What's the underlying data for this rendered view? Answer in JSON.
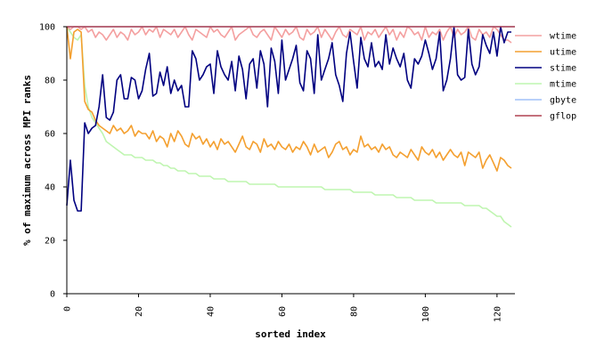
{
  "chart_data": {
    "type": "line",
    "xlabel": "sorted index",
    "ylabel": "% of maximum across MPI ranks",
    "xlim": [
      0,
      125
    ],
    "ylim": [
      0,
      100
    ],
    "x_ticks": [
      0,
      20,
      40,
      60,
      80,
      100,
      120
    ],
    "y_ticks": [
      0,
      20,
      40,
      60,
      80,
      100
    ],
    "grid": false,
    "legend_position": "right",
    "series": [
      {
        "name": "wtime",
        "color": "#f4a0a0",
        "values": [
          100,
          99,
          100,
          100,
          99,
          100,
          98,
          99,
          96,
          98,
          97,
          95,
          97,
          99,
          96,
          98,
          97,
          95,
          99,
          97,
          98,
          100,
          97,
          99,
          98,
          100,
          96,
          99,
          98,
          97,
          99,
          96,
          98,
          100,
          97,
          95,
          99,
          98,
          97,
          96,
          100,
          98,
          99,
          97,
          96,
          98,
          100,
          95,
          97,
          98,
          99,
          100,
          97,
          96,
          98,
          99,
          97,
          95,
          100,
          98,
          96,
          99,
          97,
          98,
          100,
          96,
          95,
          99,
          97,
          98,
          100,
          96,
          99,
          97,
          95,
          98,
          100,
          97,
          96,
          99,
          98,
          97,
          100,
          95,
          98,
          97,
          99,
          96,
          98,
          100,
          97,
          99,
          95,
          98,
          96,
          100,
          99,
          97,
          98,
          95,
          100,
          96,
          98,
          97,
          99,
          95,
          98,
          100,
          96,
          99,
          97,
          98,
          100,
          96,
          95,
          99,
          97,
          98,
          96,
          100,
          99,
          97,
          95,
          95,
          94
        ]
      },
      {
        "name": "utime",
        "color": "#f4a030",
        "values": [
          100,
          88,
          98,
          99,
          98,
          72,
          69,
          68,
          65,
          63,
          62,
          61,
          60,
          63,
          61,
          62,
          60,
          61,
          63,
          59,
          61,
          60,
          60,
          58,
          61,
          57,
          59,
          58,
          55,
          60,
          57,
          61,
          59,
          56,
          55,
          60,
          58,
          59,
          56,
          58,
          55,
          57,
          54,
          58,
          56,
          57,
          55,
          53,
          56,
          59,
          55,
          54,
          57,
          56,
          53,
          58,
          55,
          56,
          54,
          57,
          55,
          54,
          56,
          53,
          55,
          54,
          57,
          55,
          52,
          56,
          53,
          54,
          55,
          51,
          53,
          56,
          57,
          54,
          55,
          52,
          54,
          53,
          59,
          55,
          56,
          54,
          55,
          53,
          56,
          54,
          55,
          52,
          51,
          53,
          52,
          51,
          54,
          52,
          50,
          55,
          53,
          52,
          54,
          51,
          53,
          50,
          52,
          54,
          52,
          51,
          53,
          48,
          53,
          52,
          51,
          53,
          47,
          50,
          52,
          49,
          46,
          51,
          50,
          48,
          47
        ]
      },
      {
        "name": "stime",
        "color": "#000080",
        "values": [
          33,
          50,
          35,
          31,
          31,
          64,
          60,
          62,
          63,
          70,
          82,
          66,
          65,
          68,
          80,
          82,
          73,
          73,
          81,
          80,
          73,
          76,
          84,
          90,
          74,
          75,
          83,
          78,
          85,
          75,
          80,
          76,
          78,
          70,
          70,
          91,
          88,
          80,
          82,
          85,
          86,
          75,
          91,
          85,
          82,
          80,
          87,
          76,
          89,
          84,
          73,
          86,
          88,
          77,
          91,
          86,
          70,
          92,
          87,
          75,
          95,
          80,
          84,
          88,
          93,
          79,
          76,
          91,
          88,
          75,
          97,
          80,
          84,
          88,
          94,
          82,
          78,
          72,
          90,
          98,
          87,
          77,
          96,
          88,
          85,
          94,
          85,
          87,
          84,
          97,
          86,
          92,
          88,
          85,
          90,
          80,
          77,
          88,
          86,
          89,
          95,
          90,
          84,
          88,
          98,
          76,
          80,
          88,
          100,
          82,
          80,
          81,
          99,
          86,
          82,
          85,
          97,
          93,
          90,
          98,
          89,
          100,
          94,
          98,
          98
        ]
      },
      {
        "name": "mtime",
        "color": "#bff5b0",
        "values": [
          100,
          98,
          96,
          95,
          97,
          78,
          70,
          66,
          64,
          62,
          60,
          57,
          56,
          55,
          54,
          53,
          52,
          52,
          52,
          51,
          51,
          51,
          50,
          50,
          50,
          49,
          49,
          48,
          48,
          47,
          47,
          46,
          46,
          46,
          45,
          45,
          45,
          44,
          44,
          44,
          44,
          43,
          43,
          43,
          43,
          42,
          42,
          42,
          42,
          42,
          42,
          41,
          41,
          41,
          41,
          41,
          41,
          41,
          41,
          40,
          40,
          40,
          40,
          40,
          40,
          40,
          40,
          40,
          40,
          40,
          40,
          40,
          39,
          39,
          39,
          39,
          39,
          39,
          39,
          39,
          38,
          38,
          38,
          38,
          38,
          38,
          37,
          37,
          37,
          37,
          37,
          37,
          36,
          36,
          36,
          36,
          36,
          35,
          35,
          35,
          35,
          35,
          35,
          34,
          34,
          34,
          34,
          34,
          34,
          34,
          34,
          33,
          33,
          33,
          33,
          33,
          32,
          32,
          31,
          30,
          29,
          29,
          27,
          26,
          25
        ]
      },
      {
        "name": "gbyte",
        "color": "#a0c0f8",
        "values": [
          100,
          100
        ]
      },
      {
        "name": "gflop",
        "color": "#b04050",
        "values": [
          100,
          100
        ]
      }
    ]
  }
}
